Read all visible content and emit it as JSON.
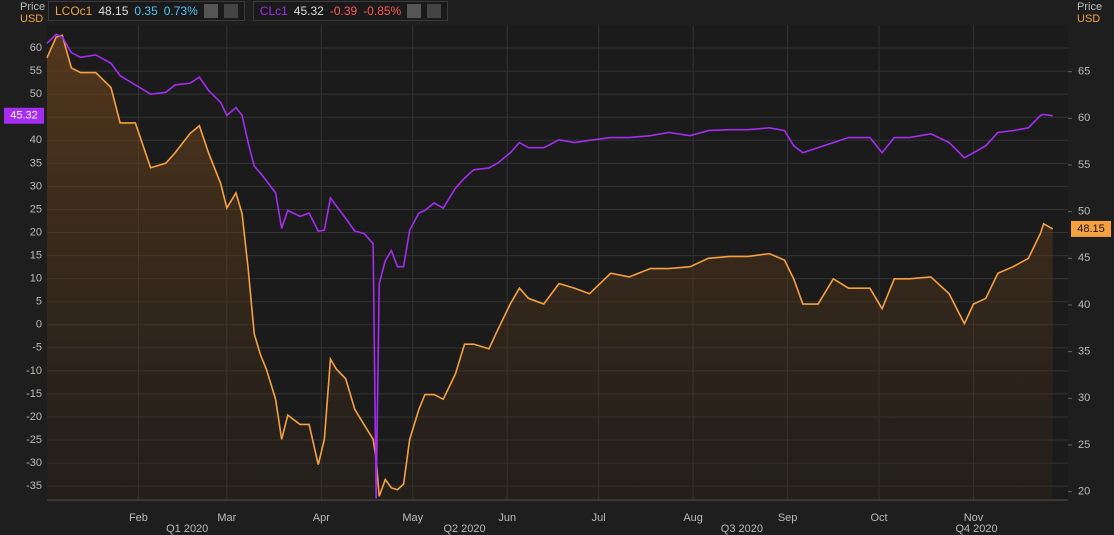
{
  "chart_data": {
    "type": "line",
    "y_label": "Price",
    "y_unit": "USD",
    "y2_label": "Price",
    "y2_unit": "USD",
    "x": [
      2,
      5,
      7,
      10,
      13,
      18,
      23,
      26,
      31,
      36,
      41,
      44,
      49,
      52,
      55,
      59,
      61,
      64,
      66,
      68,
      70,
      72,
      74,
      77,
      79,
      81,
      85,
      88,
      91,
      93,
      95,
      97,
      100,
      103,
      106,
      109,
      110,
      111,
      113,
      115,
      117,
      119,
      121,
      124,
      126,
      129,
      132,
      136,
      139,
      142,
      147,
      150,
      154,
      157,
      160,
      165,
      170,
      175,
      180,
      187,
      193,
      200,
      206,
      213,
      219,
      226,
      232,
      239,
      244,
      247,
      250,
      255,
      260,
      265,
      272,
      276,
      280,
      285,
      292,
      298,
      303,
      306,
      310,
      314,
      319,
      324,
      328,
      329,
      332
    ],
    "xlim": [
      2,
      337
    ],
    "xticks": [
      {
        "value": 32,
        "label": "Feb"
      },
      {
        "value": 61,
        "label": "Mar"
      },
      {
        "value": 92,
        "label": "Apr"
      },
      {
        "value": 122,
        "label": "May"
      },
      {
        "value": 153,
        "label": "Jun"
      },
      {
        "value": 183,
        "label": "Jul"
      },
      {
        "value": 214,
        "label": "Aug"
      },
      {
        "value": 245,
        "label": "Sep"
      },
      {
        "value": 275,
        "label": "Oct"
      },
      {
        "value": 306,
        "label": "Nov"
      }
    ],
    "x_groups": [
      {
        "value": 48,
        "label": "Q1 2020"
      },
      {
        "value": 139,
        "label": "Q2 2020"
      },
      {
        "value": 230,
        "label": "Q3 2020"
      },
      {
        "value": 307,
        "label": "Q4 2020"
      }
    ],
    "ylim": [
      -38,
      65
    ],
    "yticks": [
      -35,
      -30,
      -25,
      -20,
      -15,
      -10,
      -5,
      0,
      5,
      10,
      15,
      20,
      25,
      30,
      35,
      40,
      45,
      50,
      55,
      60
    ],
    "y2lim": [
      19.1,
      70
    ],
    "y2ticks": [
      20,
      25,
      30,
      35,
      40,
      45,
      50,
      55,
      60,
      65
    ],
    "grid": true,
    "series": [
      {
        "name": "LCOc1",
        "color": "#f5a142",
        "axis": "y2",
        "change": 0.35,
        "change_pct": {
          "value": 0.73,
          "label": "0.73%"
        },
        "change_color": "#4fc3f7",
        "values": [
          66.5,
          68.7,
          68.9,
          65.4,
          64.9,
          64.9,
          63.3,
          59.5,
          59.5,
          54.7,
          55.2,
          56.3,
          58.4,
          59.2,
          56.3,
          53,
          50.4,
          52,
          49.8,
          43.9,
          36.9,
          34.7,
          33.1,
          29.9,
          25.6,
          28.2,
          27.2,
          27.2,
          22.9,
          25.6,
          34.2,
          33.1,
          32.1,
          28.8,
          27.2,
          25.6,
          23.5,
          19.5,
          21.3,
          20.4,
          20.2,
          20.8,
          25.6,
          28.8,
          30.4,
          30.4,
          29.9,
          32.6,
          35.8,
          35.8,
          35.3,
          37.4,
          40.1,
          41.8,
          40.7,
          40.1,
          42.3,
          41.8,
          41.2,
          43.4,
          43,
          43.9,
          43.9,
          44.1,
          45,
          45.2,
          45.2,
          45.5,
          44.8,
          42.8,
          40.1,
          40.1,
          42.8,
          41.8,
          41.8,
          39.6,
          42.8,
          42.8,
          43,
          41.2,
          38,
          40.1,
          40.7,
          43.4,
          44.1,
          45,
          47.7,
          48.7,
          48.15
        ]
      },
      {
        "name": "CLc1",
        "color": "#a52cf0",
        "axis": "y",
        "change": -0.39,
        "change_pct": {
          "value": -0.85,
          "label": "-0.85%"
        },
        "change_color": "#ff5a5a",
        "values": [
          61,
          63,
          62.4,
          59,
          58,
          58.5,
          56.7,
          54,
          52,
          50,
          50.4,
          52,
          52.4,
          53.7,
          50.8,
          48.2,
          45.4,
          47.1,
          45.4,
          39.5,
          34.4,
          32.9,
          31.2,
          28.6,
          20.9,
          24.8,
          23.5,
          24.2,
          20.3,
          20.5,
          27.5,
          25.7,
          23.1,
          20.3,
          19.8,
          17.6,
          -37.63,
          8.9,
          13.9,
          16.1,
          12.6,
          12.6,
          20.5,
          24.2,
          24.8,
          26.4,
          25.3,
          29.6,
          31.8,
          33.6,
          34,
          35.1,
          37.3,
          39.5,
          38.4,
          38.4,
          40.1,
          39.5,
          40,
          40.6,
          40.6,
          41,
          41.7,
          41,
          42.1,
          42.3,
          42.3,
          42.7,
          42.1,
          38.8,
          37.3,
          38.4,
          39.5,
          40.6,
          40.6,
          37.3,
          40.6,
          40.6,
          41.4,
          39.5,
          36.2,
          37.3,
          38.8,
          41.7,
          42.1,
          42.7,
          45.4,
          45.6,
          45.32
        ]
      }
    ]
  }
}
